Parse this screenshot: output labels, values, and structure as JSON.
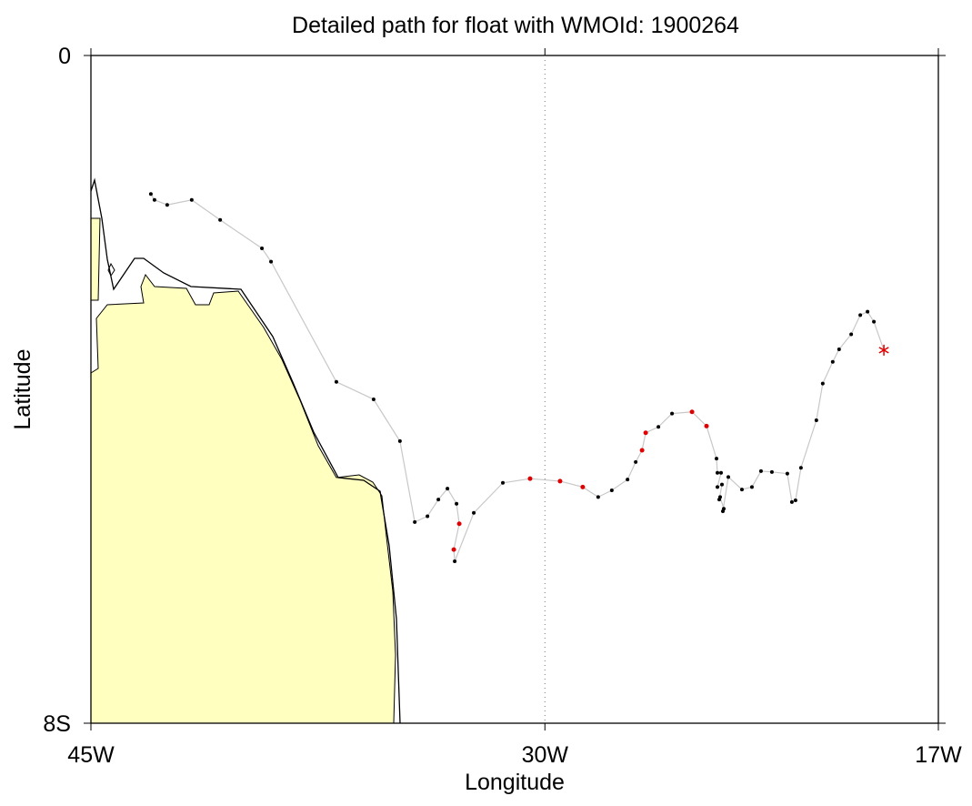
{
  "chart_data": {
    "type": "track",
    "title": "Detailed path for float with WMOId: 1900264",
    "xlabel": "Longitude",
    "ylabel": "Latitude",
    "xlim": [
      -45,
      -17
    ],
    "ylim": [
      -8,
      0
    ],
    "xticks": [
      {
        "value": -45,
        "label": "45W"
      },
      {
        "value": -30,
        "label": "30W"
      },
      {
        "value": -17,
        "label": "17W"
      }
    ],
    "yticks": [
      {
        "value": -8,
        "label": "8S"
      },
      0
    ],
    "grid": true,
    "line_color": "#c8c8c8",
    "series": [
      {
        "x": [
          -43.02,
          -42.9,
          -42.48,
          -41.67,
          -40.73,
          -39.35,
          -39.05,
          -36.89,
          -35.66,
          -34.79,
          -34.3,
          -33.88,
          -33.52,
          -33.22,
          -32.92,
          -32.83,
          -33.01,
          -32.98,
          -32.35,
          -31.39,
          -30.49,
          -29.5,
          -28.75,
          -28.24,
          -27.79,
          -27.27,
          -27.0,
          -26.79,
          -26.67,
          -26.25,
          -25.8,
          -25.14,
          -24.66,
          -24.33,
          -24.3,
          -24.18,
          -24.3,
          -24.15,
          -24.24,
          -24.21,
          -24.09,
          -24.12,
          -23.94,
          -23.49,
          -23.16,
          -22.86,
          -22.5,
          -21.99,
          -21.84,
          -21.72,
          -21.54,
          -21.03,
          -20.82,
          -20.49,
          -20.28,
          -19.88,
          -19.58,
          -19.34,
          -19.13,
          -18.8
        ],
        "values": [
          -1.66,
          -1.73,
          -1.79,
          -1.73,
          -1.97,
          -2.31,
          -2.47,
          -3.91,
          -4.12,
          -4.62,
          -5.59,
          -5.52,
          -5.32,
          -5.19,
          -5.37,
          -5.61,
          -5.92,
          -6.06,
          -5.48,
          -5.12,
          -5.07,
          -5.1,
          -5.17,
          -5.29,
          -5.21,
          -5.08,
          -4.87,
          -4.73,
          -4.52,
          -4.45,
          -4.29,
          -4.27,
          -4.44,
          -4.83,
          -5.0,
          -5.0,
          -5.17,
          -5.14,
          -5.32,
          -5.29,
          -5.43,
          -5.46,
          -5.05,
          -5.2,
          -5.17,
          -4.98,
          -4.99,
          -5.01,
          -5.35,
          -5.33,
          -4.94,
          -4.37,
          -3.93,
          -3.67,
          -3.52,
          -3.34,
          -3.11,
          -3.07,
          -3.19,
          -3.53
        ],
        "colors": [
          "#000",
          "#000",
          "#000",
          "#000",
          "#000",
          "#000",
          "#000",
          "#000",
          "#000",
          "#000",
          "#000",
          "#000",
          "#000",
          "#000",
          "#000",
          "#e00000",
          "#e00000",
          "#000",
          "#000",
          "#000",
          "#e00000",
          "#e00000",
          "#e00000",
          "#000",
          "#000",
          "#000",
          "#000",
          "#e00000",
          "#e00000",
          "#000",
          "#000",
          "#e00000",
          "#e00000",
          "#000",
          "#000",
          "#000",
          "#000",
          "#000",
          "#000",
          "#000",
          "#000",
          "#000",
          "#000",
          "#000",
          "#000",
          "#000",
          "#000",
          "#000",
          "#000",
          "#000",
          "#000",
          "#000",
          "#000",
          "#000",
          "#000",
          "#000",
          "#000",
          "#000",
          "#000",
          "#e00000"
        ]
      }
    ]
  }
}
